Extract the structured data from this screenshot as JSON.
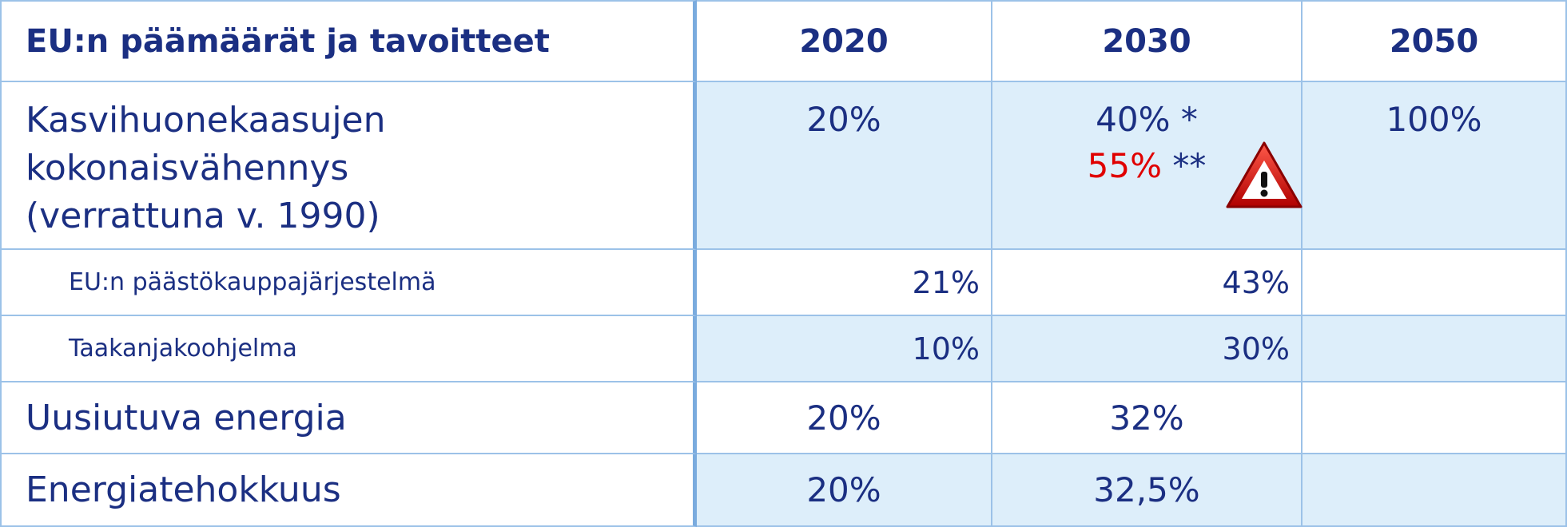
{
  "header": {
    "title": "EU:n päämäärät ja tavoitteet",
    "columns": [
      "2020",
      "2030",
      "2050"
    ]
  },
  "rows": [
    {
      "label_lines": [
        "Kasvihuonekaasujen",
        "kokonaisvähennys",
        "(verrattuna v. 1990)"
      ],
      "cells": [
        "20%",
        {
          "text": "40% *",
          "highlight": "55%",
          "highlight_suffix": "**"
        },
        "100%"
      ]
    },
    {
      "label": "EU:n päästökauppajärjestelmä",
      "cells": [
        "21%",
        "43%"
      ]
    },
    {
      "label": "Taakanjakoohjelma",
      "cells": [
        "10%",
        "30%"
      ]
    },
    {
      "label": "Uusiutuva energia",
      "cells": [
        "20%",
        "32%"
      ]
    },
    {
      "label": "Energiatehokkuus",
      "cells": [
        "20%",
        "32,5%"
      ]
    }
  ]
}
